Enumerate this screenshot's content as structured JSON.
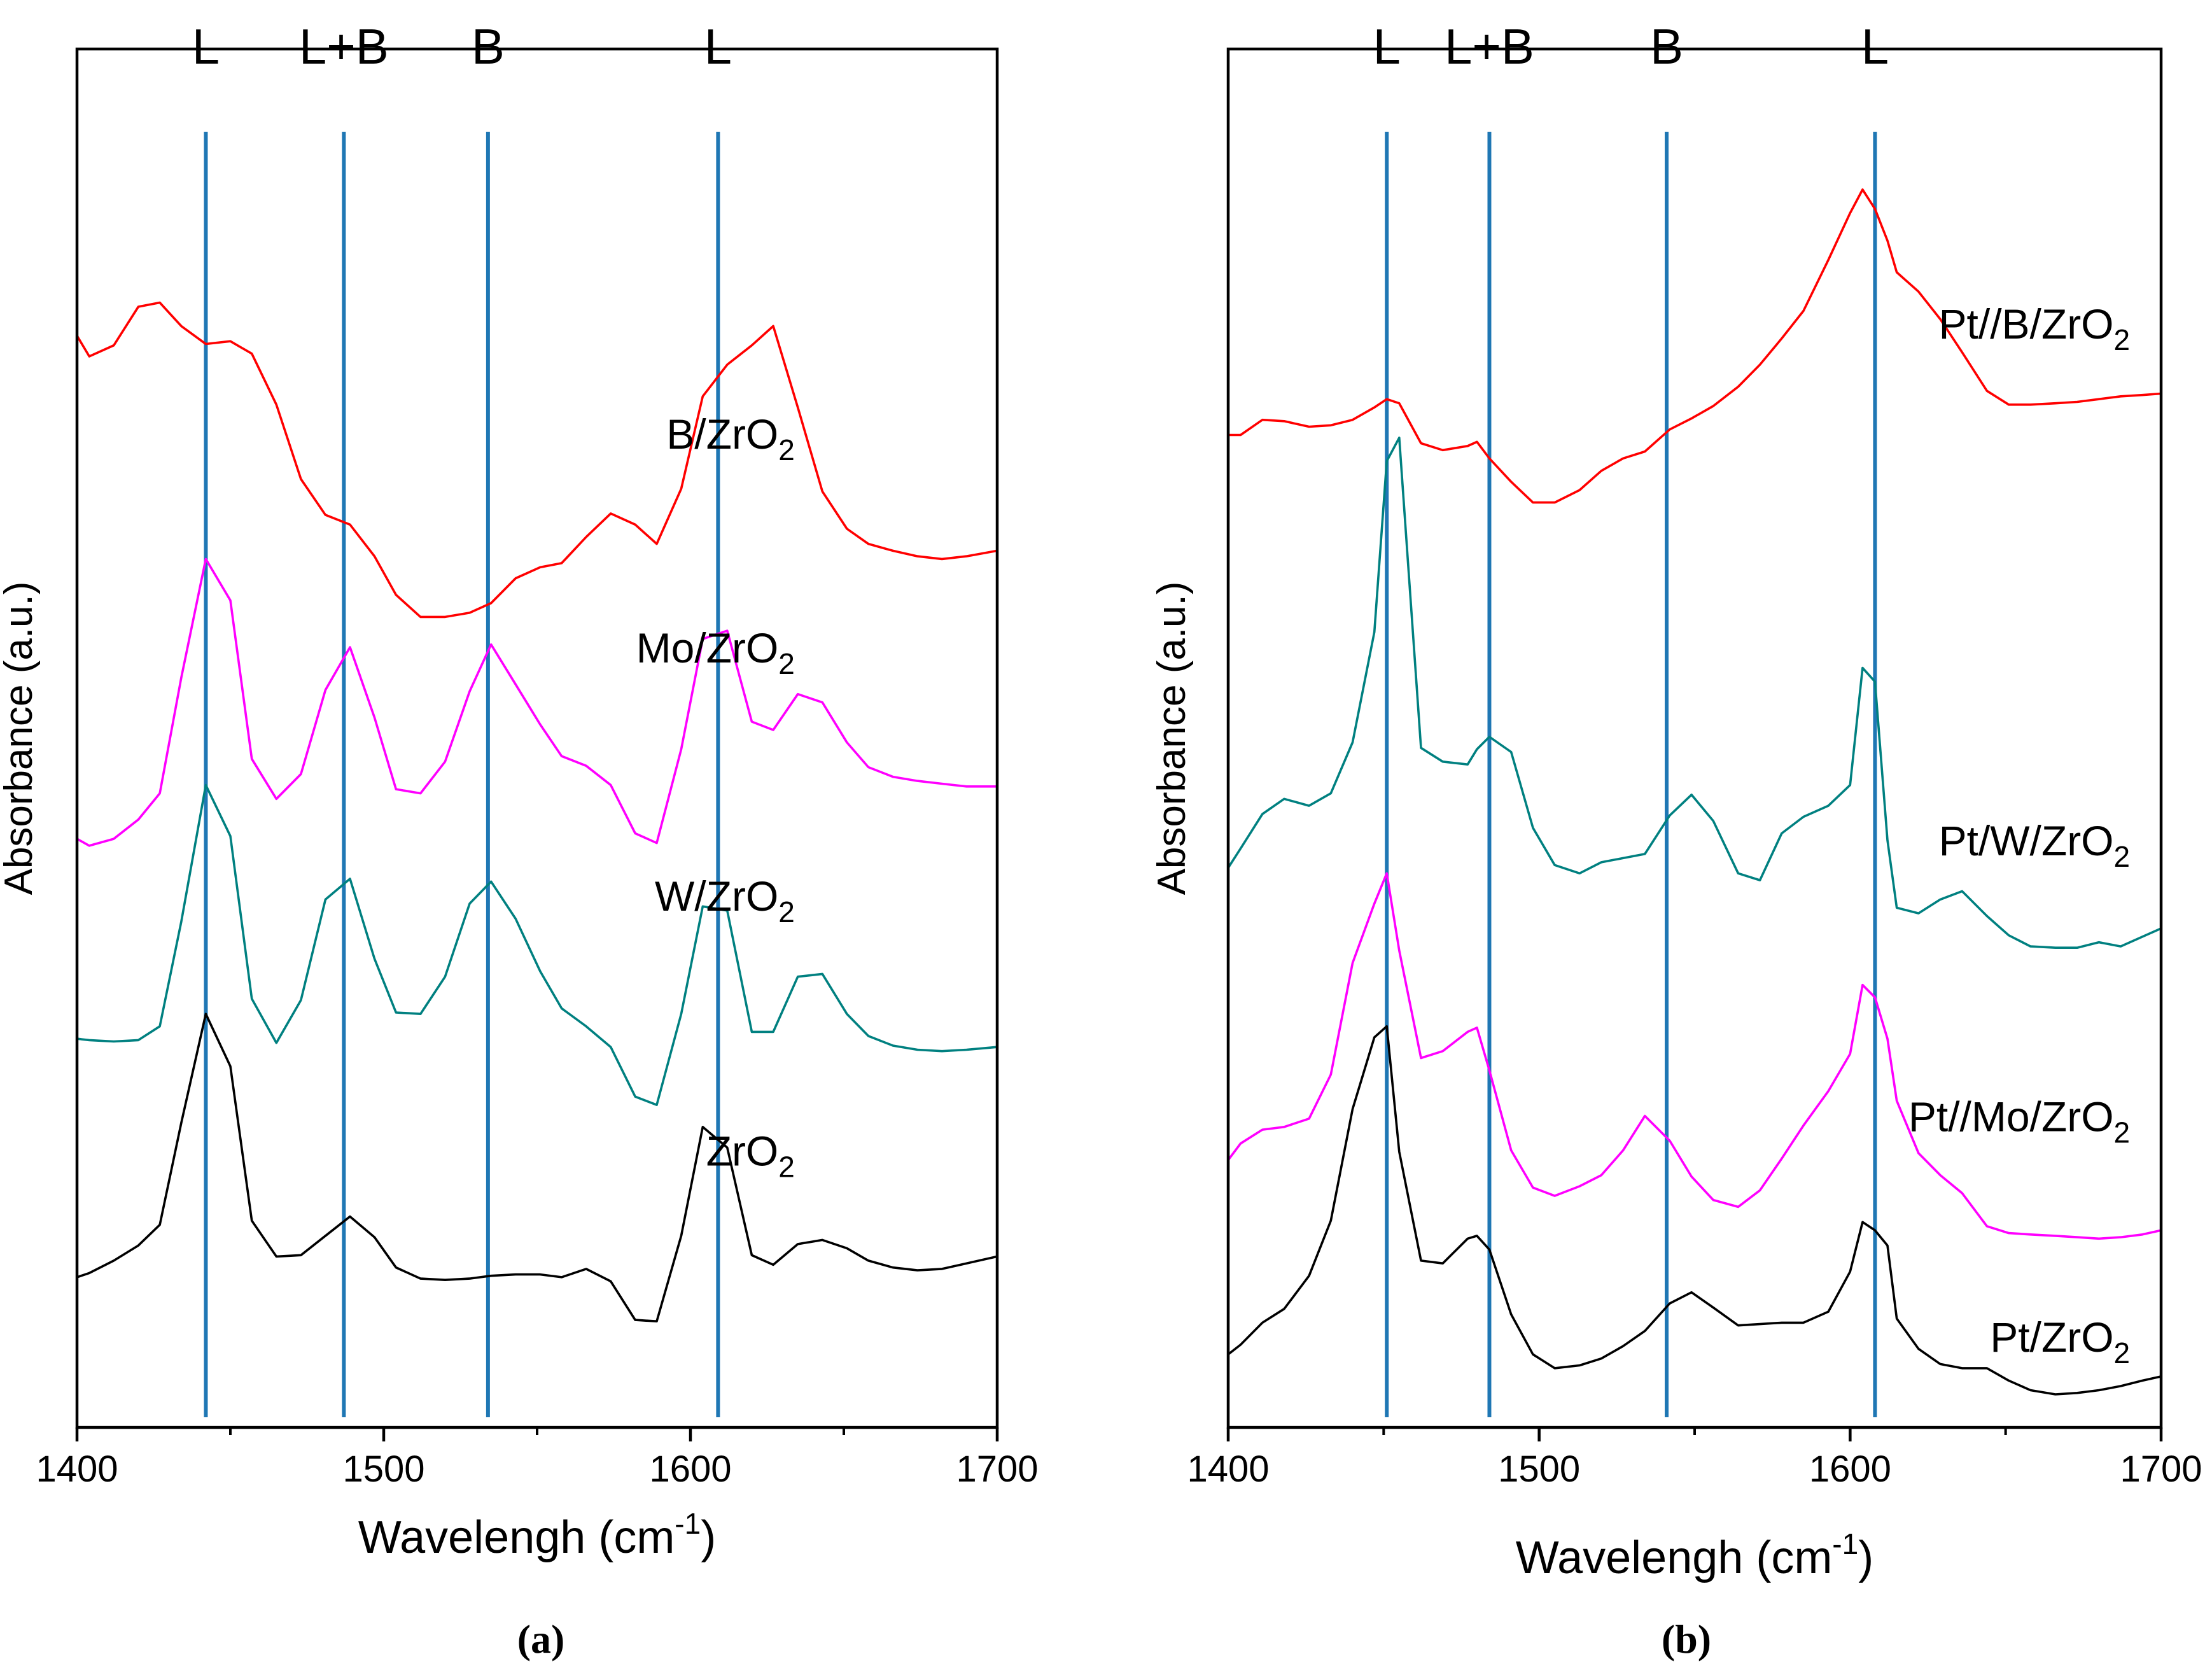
{
  "colors": {
    "red": "#ff0000",
    "magenta": "#ff00ff",
    "teal": "#008080",
    "black": "#000000",
    "band_line": "#1f77b4"
  },
  "chart_data": [
    {
      "type": "line",
      "panel": "a",
      "caption": "(a)",
      "xlabel": "Wavelengh (cm",
      "xlabel_sup": "-1",
      "xlabel_end": ")",
      "ylabel": "Absorbance (a.u.)",
      "xlim": [
        1400,
        1700
      ],
      "ylim": [
        0,
        1
      ],
      "xticks": [
        1400,
        1500,
        1600,
        1700
      ],
      "y_ticks_shown": false,
      "band_markers": [
        {
          "label": "L",
          "x": 1442
        },
        {
          "label": "L+B",
          "x": 1487
        },
        {
          "label": "B",
          "x": 1534
        },
        {
          "label": "L",
          "x": 1609
        }
      ],
      "series": [
        {
          "name": "B/ZrO2",
          "label_main": "B/ZrO",
          "label_sub": "2",
          "label_x": 1634,
          "label_y": 0.71,
          "color": "#ff0000",
          "x": [
            1400,
            1404,
            1412,
            1420,
            1427,
            1434,
            1442,
            1450,
            1457,
            1465,
            1473,
            1481,
            1489,
            1497,
            1504,
            1512,
            1520,
            1528,
            1535,
            1543,
            1551,
            1558,
            1566,
            1574,
            1582,
            1589,
            1597,
            1604,
            1612,
            1620,
            1627,
            1635,
            1643,
            1651,
            1658,
            1666,
            1674,
            1682,
            1690,
            1700
          ],
          "values": [
            0.792,
            0.777,
            0.785,
            0.813,
            0.816,
            0.799,
            0.786,
            0.788,
            0.779,
            0.742,
            0.688,
            0.662,
            0.655,
            0.632,
            0.604,
            0.588,
            0.588,
            0.591,
            0.598,
            0.616,
            0.624,
            0.627,
            0.646,
            0.663,
            0.655,
            0.641,
            0.681,
            0.748,
            0.771,
            0.785,
            0.799,
            0.74,
            0.679,
            0.652,
            0.641,
            0.636,
            0.632,
            0.63,
            0.632,
            0.636
          ]
        },
        {
          "name": "Mo/ZrO2",
          "label_main": "Mo/ZrO",
          "label_sub": "2",
          "label_x": 1634,
          "label_y": 0.555,
          "color": "#ff00ff",
          "x": [
            1400,
            1404,
            1412,
            1420,
            1427,
            1434,
            1442,
            1450,
            1457,
            1465,
            1473,
            1481,
            1489,
            1497,
            1504,
            1512,
            1520,
            1528,
            1535,
            1543,
            1551,
            1558,
            1566,
            1574,
            1582,
            1589,
            1597,
            1604,
            1612,
            1620,
            1627,
            1635,
            1643,
            1651,
            1658,
            1666,
            1674,
            1682,
            1690,
            1700
          ],
          "values": [
            0.427,
            0.422,
            0.427,
            0.441,
            0.46,
            0.544,
            0.63,
            0.6,
            0.485,
            0.456,
            0.474,
            0.535,
            0.566,
            0.515,
            0.463,
            0.46,
            0.483,
            0.534,
            0.568,
            0.539,
            0.51,
            0.487,
            0.48,
            0.466,
            0.431,
            0.424,
            0.492,
            0.572,
            0.578,
            0.512,
            0.506,
            0.532,
            0.526,
            0.497,
            0.479,
            0.472,
            0.469,
            0.467,
            0.465,
            0.465
          ]
        },
        {
          "name": "W/ZrO2",
          "label_main": "W/ZrO",
          "label_sub": "2",
          "label_x": 1634,
          "label_y": 0.375,
          "color": "#008080",
          "x": [
            1400,
            1404,
            1412,
            1420,
            1427,
            1434,
            1442,
            1450,
            1457,
            1465,
            1473,
            1481,
            1489,
            1497,
            1504,
            1512,
            1520,
            1528,
            1535,
            1543,
            1551,
            1558,
            1566,
            1574,
            1582,
            1589,
            1597,
            1604,
            1612,
            1620,
            1627,
            1635,
            1643,
            1651,
            1658,
            1666,
            1674,
            1682,
            1690,
            1700
          ],
          "values": [
            0.282,
            0.281,
            0.28,
            0.281,
            0.291,
            0.367,
            0.466,
            0.429,
            0.311,
            0.279,
            0.31,
            0.383,
            0.398,
            0.34,
            0.301,
            0.3,
            0.327,
            0.38,
            0.396,
            0.369,
            0.331,
            0.304,
            0.291,
            0.276,
            0.24,
            0.234,
            0.3,
            0.378,
            0.375,
            0.287,
            0.287,
            0.327,
            0.329,
            0.3,
            0.284,
            0.277,
            0.274,
            0.273,
            0.274,
            0.276
          ]
        },
        {
          "name": "ZrO2",
          "label_main": "ZrO",
          "label_sub": "2",
          "label_x": 1634,
          "label_y": 0.19,
          "color": "#000000",
          "x": [
            1400,
            1404,
            1412,
            1420,
            1427,
            1434,
            1442,
            1450,
            1457,
            1465,
            1473,
            1481,
            1489,
            1497,
            1504,
            1512,
            1520,
            1528,
            1535,
            1543,
            1551,
            1558,
            1566,
            1574,
            1582,
            1589,
            1597,
            1604,
            1612,
            1620,
            1627,
            1635,
            1643,
            1651,
            1658,
            1666,
            1674,
            1682,
            1690,
            1700
          ],
          "values": [
            0.109,
            0.112,
            0.121,
            0.132,
            0.147,
            0.221,
            0.3,
            0.262,
            0.15,
            0.124,
            0.125,
            0.139,
            0.153,
            0.138,
            0.116,
            0.108,
            0.107,
            0.108,
            0.11,
            0.111,
            0.111,
            0.109,
            0.115,
            0.106,
            0.078,
            0.077,
            0.139,
            0.218,
            0.203,
            0.125,
            0.118,
            0.133,
            0.136,
            0.13,
            0.121,
            0.116,
            0.114,
            0.115,
            0.119,
            0.124
          ]
        }
      ]
    },
    {
      "type": "line",
      "panel": "b",
      "caption": "(b)",
      "xlabel": "Wavelengh (cm",
      "xlabel_sup": "-1",
      "xlabel_end": ")",
      "ylabel": "Absorbance (a.u.)",
      "xlim": [
        1400,
        1700
      ],
      "ylim": [
        0,
        1
      ],
      "xticks": [
        1400,
        1500,
        1600,
        1700
      ],
      "y_ticks_shown": false,
      "band_markers": [
        {
          "label": "L",
          "x": 1451
        },
        {
          "label": "L+B",
          "x": 1484
        },
        {
          "label": "B",
          "x": 1541
        },
        {
          "label": "L",
          "x": 1608
        }
      ],
      "series": [
        {
          "name": "Pt//B/ZrO2",
          "label_main": "Pt//B/ZrO",
          "label_sub": "2",
          "label_x": 1690,
          "label_y": 0.79,
          "color": "#ff0000",
          "x": [
            1400,
            1404,
            1411,
            1418,
            1426,
            1433,
            1440,
            1447,
            1451,
            1455,
            1462,
            1469,
            1477,
            1480,
            1484,
            1491,
            1498,
            1505,
            1513,
            1520,
            1527,
            1534,
            1542,
            1549,
            1556,
            1564,
            1571,
            1578,
            1585,
            1593,
            1600,
            1604,
            1608,
            1612,
            1615,
            1622,
            1629,
            1636,
            1644,
            1651,
            1658,
            1666,
            1673,
            1680,
            1687,
            1694,
            1700
          ],
          "values": [
            0.72,
            0.72,
            0.731,
            0.73,
            0.726,
            0.727,
            0.731,
            0.74,
            0.746,
            0.743,
            0.714,
            0.709,
            0.712,
            0.715,
            0.703,
            0.686,
            0.671,
            0.671,
            0.68,
            0.694,
            0.703,
            0.708,
            0.724,
            0.732,
            0.741,
            0.755,
            0.771,
            0.79,
            0.81,
            0.847,
            0.881,
            0.898,
            0.884,
            0.861,
            0.838,
            0.824,
            0.804,
            0.78,
            0.752,
            0.742,
            0.742,
            0.743,
            0.744,
            0.746,
            0.748,
            0.749,
            0.75
          ]
        },
        {
          "name": "Pt/W/ZrO2",
          "label_main": "Pt/W/ZrO",
          "label_sub": "2",
          "label_x": 1690,
          "label_y": 0.415,
          "color": "#008080",
          "x": [
            1400,
            1404,
            1411,
            1418,
            1426,
            1433,
            1440,
            1447,
            1451,
            1455,
            1462,
            1469,
            1477,
            1480,
            1484,
            1491,
            1498,
            1505,
            1513,
            1520,
            1527,
            1534,
            1542,
            1549,
            1556,
            1564,
            1571,
            1578,
            1585,
            1593,
            1600,
            1604,
            1608,
            1612,
            1615,
            1622,
            1629,
            1636,
            1644,
            1651,
            1658,
            1666,
            1673,
            1680,
            1687,
            1694,
            1700
          ],
          "values": [
            0.406,
            0.42,
            0.445,
            0.456,
            0.451,
            0.46,
            0.497,
            0.577,
            0.701,
            0.718,
            0.493,
            0.483,
            0.481,
            0.492,
            0.501,
            0.49,
            0.435,
            0.408,
            0.402,
            0.41,
            0.413,
            0.416,
            0.444,
            0.459,
            0.44,
            0.402,
            0.397,
            0.431,
            0.443,
            0.451,
            0.466,
            0.551,
            0.541,
            0.426,
            0.377,
            0.373,
            0.383,
            0.389,
            0.371,
            0.357,
            0.349,
            0.348,
            0.348,
            0.352,
            0.349,
            0.356,
            0.362
          ]
        },
        {
          "name": "Pt//Mo/ZrO2",
          "label_main": "Pt//Mo/ZrO",
          "label_sub": "2",
          "label_x": 1690,
          "label_y": 0.215,
          "color": "#ff00ff",
          "x": [
            1400,
            1404,
            1411,
            1418,
            1426,
            1433,
            1440,
            1447,
            1451,
            1455,
            1462,
            1469,
            1477,
            1480,
            1484,
            1491,
            1498,
            1505,
            1513,
            1520,
            1527,
            1534,
            1542,
            1549,
            1556,
            1564,
            1571,
            1578,
            1585,
            1593,
            1600,
            1604,
            1608,
            1612,
            1615,
            1622,
            1629,
            1636,
            1644,
            1651,
            1658,
            1666,
            1673,
            1680,
            1687,
            1694,
            1700
          ],
          "values": [
            0.194,
            0.206,
            0.216,
            0.218,
            0.224,
            0.256,
            0.337,
            0.38,
            0.402,
            0.346,
            0.268,
            0.273,
            0.287,
            0.29,
            0.259,
            0.201,
            0.174,
            0.168,
            0.175,
            0.183,
            0.201,
            0.226,
            0.208,
            0.182,
            0.165,
            0.16,
            0.172,
            0.195,
            0.219,
            0.244,
            0.271,
            0.321,
            0.312,
            0.282,
            0.237,
            0.199,
            0.183,
            0.17,
            0.146,
            0.141,
            0.14,
            0.139,
            0.138,
            0.137,
            0.138,
            0.14,
            0.143
          ]
        },
        {
          "name": "Pt/ZrO2",
          "label_main": "Pt/ZrO",
          "label_sub": "2",
          "label_x": 1690,
          "label_y": 0.055,
          "color": "#000000",
          "x": [
            1400,
            1404,
            1411,
            1418,
            1426,
            1433,
            1440,
            1447,
            1451,
            1455,
            1462,
            1469,
            1477,
            1480,
            1484,
            1491,
            1498,
            1505,
            1513,
            1520,
            1527,
            1534,
            1542,
            1549,
            1556,
            1564,
            1571,
            1578,
            1585,
            1593,
            1600,
            1604,
            1608,
            1612,
            1615,
            1622,
            1629,
            1636,
            1644,
            1651,
            1658,
            1666,
            1673,
            1680,
            1687,
            1694,
            1700
          ],
          "values": [
            0.053,
            0.06,
            0.076,
            0.086,
            0.11,
            0.15,
            0.231,
            0.283,
            0.291,
            0.2,
            0.121,
            0.119,
            0.137,
            0.139,
            0.129,
            0.082,
            0.053,
            0.043,
            0.045,
            0.05,
            0.059,
            0.07,
            0.09,
            0.098,
            0.087,
            0.074,
            0.075,
            0.076,
            0.076,
            0.084,
            0.113,
            0.149,
            0.143,
            0.132,
            0.079,
            0.057,
            0.046,
            0.043,
            0.043,
            0.034,
            0.027,
            0.024,
            0.025,
            0.027,
            0.03,
            0.034,
            0.037
          ]
        }
      ]
    }
  ]
}
